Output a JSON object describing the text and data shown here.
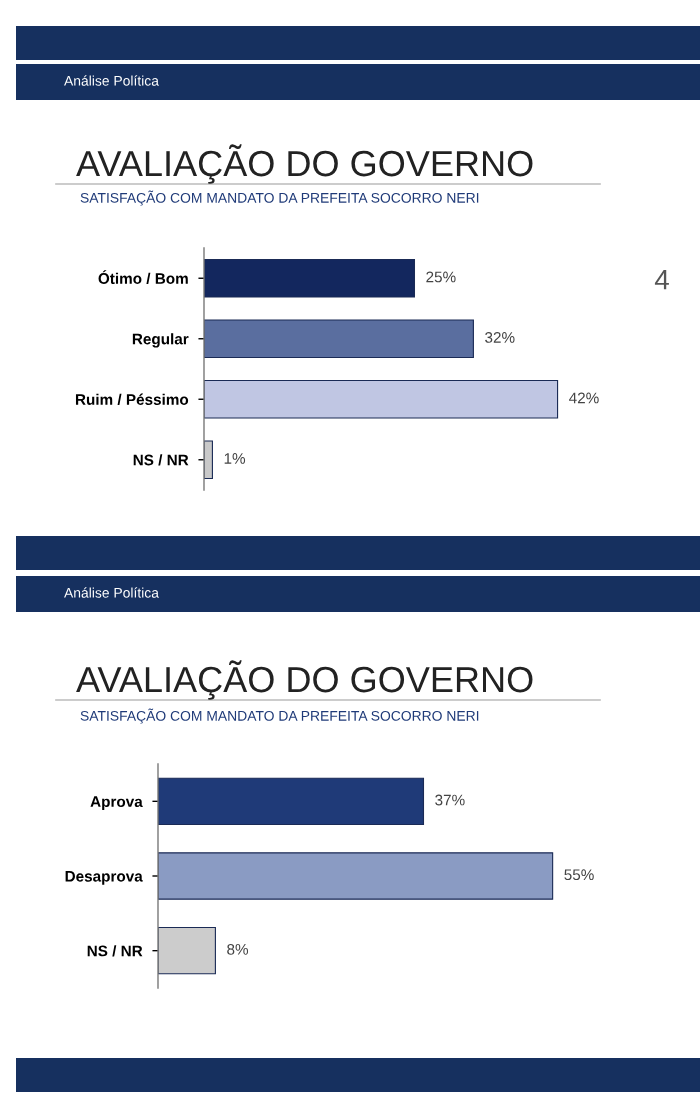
{
  "chart_data": [
    {
      "type": "bar",
      "orientation": "horizontal",
      "title": "AVALIAÇÃO DO GOVERNO",
      "subtitle": "SATISFAÇÃO COM MANDATO DA PREFEITA SOCORRO NERI",
      "categories": [
        "Ótimo / Bom",
        "Regular",
        "Ruim / Péssimo",
        "NS / NR"
      ],
      "values": [
        25,
        32,
        42,
        1
      ],
      "colors": [
        "#13275e",
        "#5a6e9f",
        "#c0c6e3",
        "#c9c9c9"
      ],
      "value_labels": [
        "25%",
        "32%",
        "42%",
        "1%"
      ],
      "annotations": [
        "Análise Política",
        "4"
      ],
      "grid": false,
      "legend": false,
      "tick_labels": "y"
    },
    {
      "type": "bar",
      "orientation": "horizontal",
      "title": "AVALIAÇÃO DO GOVERNO",
      "subtitle": "SATISFAÇÃO COM MANDATO DA PREFEITA SOCORRO NERI",
      "categories": [
        "Aprova",
        "Desaprova",
        "NS / NR"
      ],
      "values": [
        37,
        55,
        8
      ],
      "colors": [
        "#1f3a78",
        "#8a9bc3",
        "#cccccc"
      ],
      "value_labels": [
        "37%",
        "55%",
        "8%"
      ],
      "annotations": [
        "Análise Política"
      ],
      "grid": false,
      "legend": false,
      "tick_labels": "y"
    }
  ]
}
